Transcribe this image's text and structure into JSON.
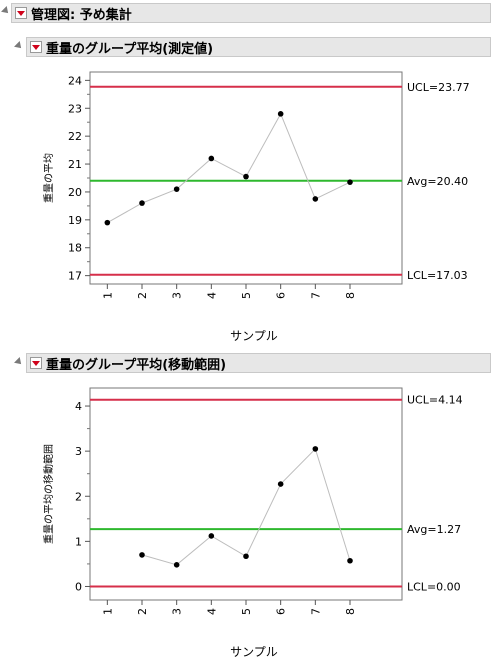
{
  "report": {
    "title": "管理図: 予め集計"
  },
  "charts": [
    {
      "header": "重量のグループ平均(測定値)",
      "ylabel": "重量の平均",
      "xlabel": "サンプル",
      "ucl_label": "UCL=23.77",
      "avg_label": "Avg=20.40",
      "lcl_label": "LCL=17.03"
    },
    {
      "header": "重量のグループ平均(移動範囲)",
      "ylabel": "重量の平均の移動範囲",
      "xlabel": "サンプル",
      "ucl_label": "UCL=4.14",
      "avg_label": "Avg=1.27",
      "lcl_label": "LCL=0.00"
    }
  ],
  "colors": {
    "limit": "#d62f4a",
    "center": "#2eb82e",
    "line": "#bdbdbd",
    "point": "#000000"
  },
  "chart_data": [
    {
      "type": "line",
      "title": "重量のグループ平均(測定値)",
      "xlabel": "サンプル",
      "ylabel": "重量の平均",
      "x": [
        1,
        2,
        3,
        4,
        5,
        6,
        7,
        8
      ],
      "series": [
        {
          "values": [
            18.9,
            19.6,
            20.1,
            21.2,
            20.55,
            22.8,
            19.75,
            20.35
          ]
        }
      ],
      "ylim": [
        16.7,
        24.3
      ],
      "yticks": [
        17,
        18,
        19,
        20,
        21,
        22,
        23,
        24
      ],
      "limits": {
        "ucl": 23.77,
        "avg": 20.4,
        "lcl": 17.03
      }
    },
    {
      "type": "line",
      "title": "重量のグループ平均(移動範囲)",
      "xlabel": "サンプル",
      "ylabel": "重量の平均の移動範囲",
      "x": [
        1,
        2,
        3,
        4,
        5,
        6,
        7,
        8
      ],
      "series": [
        {
          "values": [
            null,
            0.7,
            0.48,
            1.12,
            0.67,
            2.27,
            3.05,
            0.57
          ]
        }
      ],
      "ylim": [
        -0.3,
        4.4
      ],
      "yticks": [
        0,
        1,
        2,
        3,
        4
      ],
      "limits": {
        "ucl": 4.14,
        "avg": 1.27,
        "lcl": 0.0
      }
    }
  ]
}
